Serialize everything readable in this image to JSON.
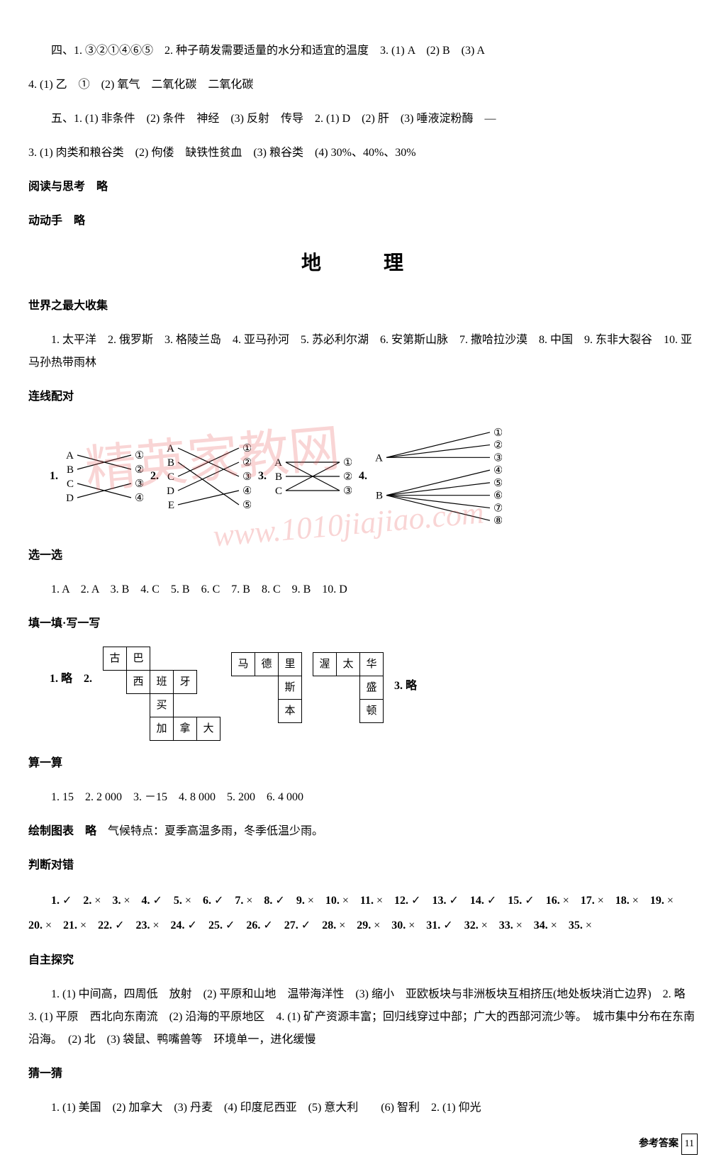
{
  "biology": {
    "line_si": "四、1. ③②①④⑥⑤　2. 种子萌发需要适量的水分和适宜的温度　3. (1) A　(2) B　(3) A",
    "line_si_2": "4. (1) 乙　①　(2) 氧气　二氧化碳　二氧化碳",
    "line_wu": "五、1. (1) 非条件　(2) 条件　神经　(3) 反射　传导　2. (1) D　(2) 肝　(3) 唾液淀粉酶　—",
    "line_wu_2": "3. (1) 肉类和粮谷类　(2) 佝偻　缺铁性贫血　(3) 粮谷类　(4) 30%、40%、30%",
    "yuedu": "阅读与思考　略",
    "dongdong": "动动手　略"
  },
  "geo_title": "地　理",
  "worldmax": {
    "heading": "世界之最大收集",
    "body": "1. 太平洋　2. 俄罗斯　3. 格陵兰岛　4. 亚马孙河　5. 苏必利尔湖　6. 安第斯山脉　7. 撒哈拉沙漠　8. 中国　9. 东非大裂谷　10. 亚马孙热带雨林"
  },
  "matching": {
    "heading": "连线配对",
    "d1_left": [
      "A",
      "B",
      "C",
      "D"
    ],
    "d1_right": [
      "①",
      "②",
      "③",
      "④"
    ],
    "d2_left": [
      "A",
      "B",
      "C",
      "D",
      "E"
    ],
    "d2_right": [
      "①",
      "②",
      "③",
      "④",
      "⑤"
    ],
    "d3_left": [
      "A",
      "B",
      "C"
    ],
    "d3_right": [
      "①",
      "②",
      "③"
    ],
    "d4_left": [
      "A",
      "B"
    ],
    "d4_right": [
      "①",
      "②",
      "③",
      "④",
      "⑤",
      "⑥",
      "⑦",
      "⑧"
    ],
    "line_color": "#000",
    "font_size": 15
  },
  "choose": {
    "heading": "选一选",
    "body": "1. A　2. A　3. B　4. C　5. B　6. C　7. B　8. C　9. B　10. D"
  },
  "fill": {
    "heading": "填一填·写一写",
    "prefix": "1. 略　2.",
    "suffix": "3. 略",
    "g1": {
      "cells": [
        [
          "古",
          "巴",
          "",
          ""
        ],
        [
          "",
          "西",
          "班",
          "牙"
        ],
        [
          "",
          "",
          "买",
          ""
        ],
        [
          "",
          "",
          "加",
          "拿",
          "大"
        ]
      ],
      "pattern": [
        [
          1,
          1,
          0,
          0,
          0
        ],
        [
          0,
          1,
          1,
          1,
          0
        ],
        [
          0,
          0,
          1,
          0,
          0
        ],
        [
          0,
          0,
          1,
          1,
          1
        ]
      ]
    },
    "g2": {
      "cells": [
        [
          "马",
          "德",
          "里"
        ],
        [
          "",
          "",
          "斯"
        ],
        [
          "",
          "",
          "本"
        ]
      ],
      "pattern": [
        [
          1,
          1,
          1
        ],
        [
          0,
          0,
          1
        ],
        [
          0,
          0,
          1
        ]
      ]
    },
    "g3": {
      "cells": [
        [
          "渥",
          "太",
          "华"
        ],
        [
          "",
          "",
          "盛"
        ],
        [
          "",
          "",
          "顿"
        ]
      ],
      "pattern": [
        [
          1,
          1,
          1
        ],
        [
          0,
          0,
          1
        ],
        [
          0,
          0,
          1
        ]
      ]
    }
  },
  "calc": {
    "heading": "算一算",
    "body": "1. 15　2. 2 000　3. －15　4. 8 000　5. 200　6. 4 000"
  },
  "chart": {
    "heading": "绘制图表　略",
    "body": "气候特点：夏季高温多雨，冬季低温少雨。"
  },
  "tf": {
    "heading": "判断对错",
    "items": [
      "✓",
      "×",
      "×",
      "✓",
      "×",
      "✓",
      "×",
      "✓",
      "×",
      "×",
      "×",
      "✓",
      "✓",
      "✓",
      "✓",
      "×",
      "×",
      "×",
      "×",
      "×",
      "×",
      "✓",
      "×",
      "✓",
      "✓",
      "✓",
      "✓",
      "×",
      "×",
      "×",
      "✓",
      "×",
      "×",
      "×",
      "×"
    ]
  },
  "explore": {
    "heading": "自主探究",
    "body1": "1. (1) 中间高，四周低　放射　(2) 平原和山地　温带海洋性　(3) 缩小　亚欧板块与非洲板块互相挤压(地处板块消亡边界)　2. 略　3. (1) 平原　西北向东南流　(2) 沿海的平原地区　4. (1) 矿产资源丰富；回归线穿过中部；广大的西部河流少等。　城市集中分布在东南沿海。　(2) 北　(3) 袋鼠、鸭嘴兽等　环境单一，进化缓慢"
  },
  "guess": {
    "heading": "猜一猜",
    "body": "1. (1) 美国　(2) 加拿大　(3) 丹麦　(4) 印度尼西亚　(5) 意大利　　(6) 智利　2. (1) 仰光"
  },
  "footer": {
    "label": "参考答案",
    "page": "11"
  },
  "watermarks": {
    "text1": "精英家教网",
    "text2": "www.1010jiajiao.com"
  }
}
